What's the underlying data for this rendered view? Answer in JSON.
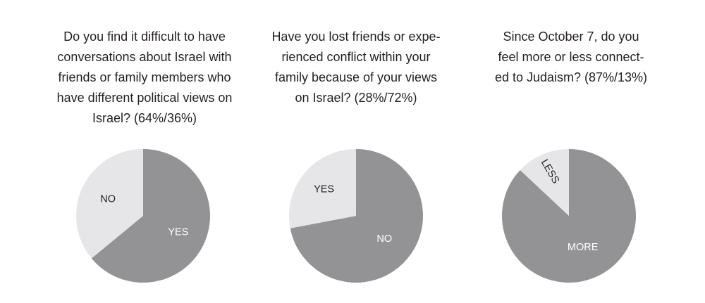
{
  "chart_data": [
    {
      "type": "pie",
      "title": "Do you find it difficult to have\nconversations about Israel with\nfriends or family members who\nhave different political views on\nIsrael? (64%/36%)",
      "slices": [
        {
          "label": "YES",
          "value": 64,
          "color": "#939396",
          "label_color": "#ffffff"
        },
        {
          "label": "NO",
          "value": 36,
          "color": "#e6e6e8",
          "label_color": "#231f20"
        }
      ]
    },
    {
      "type": "pie",
      "title": "Have you lost friends or expe-\nrienced conflict within your\nfamily because of your views\non Israel? (28%/72%)",
      "slices": [
        {
          "label": "NO",
          "value": 72,
          "color": "#939396",
          "label_color": "#ffffff"
        },
        {
          "label": "YES",
          "value": 28,
          "color": "#e6e6e8",
          "label_color": "#231f20"
        }
      ]
    },
    {
      "type": "pie",
      "title": "Since October 7, do you\nfeel more or less connect-\ned to Judaism? (87%/13%)",
      "slices": [
        {
          "label": "MORE",
          "value": 87,
          "color": "#939396",
          "label_color": "#ffffff"
        },
        {
          "label": "LESS",
          "value": 13,
          "color": "#e6e6e8",
          "label_color": "#231f20"
        }
      ]
    }
  ]
}
